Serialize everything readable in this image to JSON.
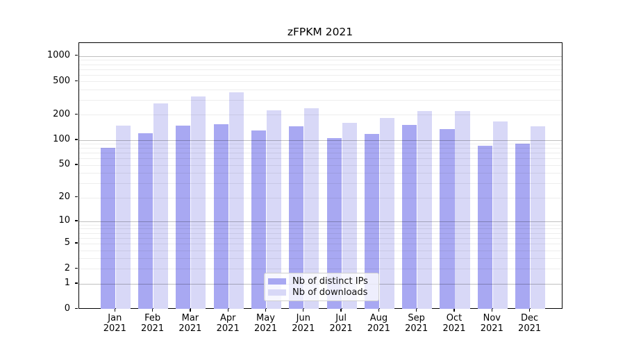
{
  "title": "zFPKM 2021",
  "chart_data": {
    "type": "bar",
    "title": "zFPKM 2021",
    "categories": [
      "Jan",
      "Feb",
      "Mar",
      "Apr",
      "May",
      "Jun",
      "Jul",
      "Aug",
      "Sep",
      "Oct",
      "Nov",
      "Dec"
    ],
    "year": "2021",
    "series": [
      {
        "name": "Nb of distinct IPs",
        "color": "#a8a8f2",
        "values": [
          81,
          121,
          149,
          155,
          131,
          146,
          105,
          119,
          151,
          135,
          86,
          91
        ]
      },
      {
        "name": "Nb of downloads",
        "color": "#d8d8f7",
        "values": [
          148,
          272,
          331,
          370,
          226,
          240,
          161,
          185,
          220,
          220,
          167,
          147
        ]
      }
    ],
    "yscale": "log1p",
    "yticks": [
      1000,
      500,
      200,
      100,
      50,
      20,
      10,
      5,
      2,
      1,
      0
    ],
    "ylim": [
      0,
      1440
    ],
    "grid": "on",
    "grid_major_color": "rgba(0,0,0,0.25)",
    "grid_minor_color": "rgba(0,0,0,0.07)",
    "legend_position": "lower-center",
    "xlabel": "",
    "ylabel": ""
  }
}
